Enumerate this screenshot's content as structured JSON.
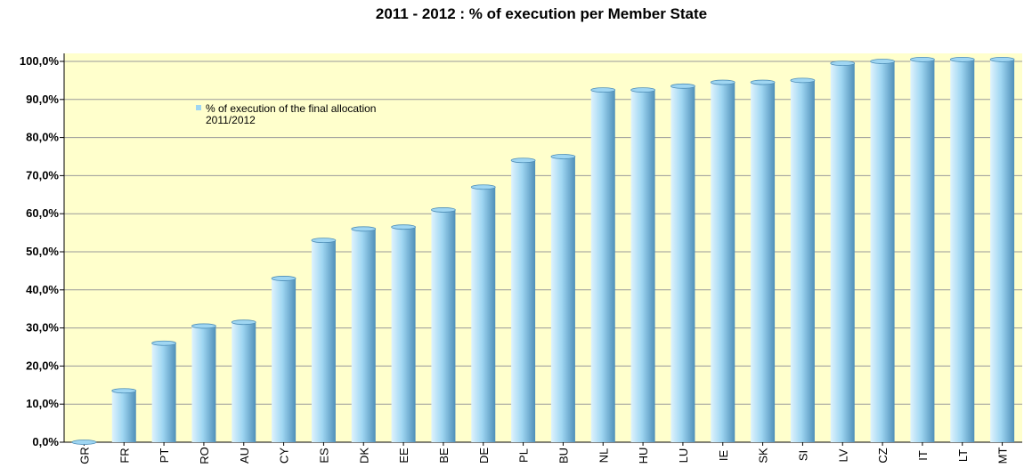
{
  "chart_data": {
    "type": "bar",
    "title": "2011 - 2012 : % of execution per Member State",
    "xlabel": "",
    "ylabel": "",
    "ylim": [
      0,
      100
    ],
    "y_ticks": [
      "0,0%",
      "10,0%",
      "20,0%",
      "30,0%",
      "40,0%",
      "50,0%",
      "60,0%",
      "70,0%",
      "80,0%",
      "90,0%",
      "100,0%"
    ],
    "grid": true,
    "legend_position": "top-left",
    "categories": [
      "GR",
      "FR",
      "PT",
      "RO",
      "AU",
      "CY",
      "ES",
      "DK",
      "EE",
      "BE",
      "DE",
      "PL",
      "BU",
      "NL",
      "HU",
      "LU",
      "IE",
      "SK",
      "SI",
      "LV",
      "CZ",
      "IT",
      "LT",
      "MT"
    ],
    "series": [
      {
        "name": "% of execution of the final allocation 2011/2012",
        "legend_lines": [
          "% of execution of the final allocation",
          "2011/2012"
        ],
        "values": [
          0,
          13.5,
          26,
          30.5,
          31.5,
          43,
          53,
          56,
          56.5,
          61,
          67,
          74,
          75,
          92.5,
          92.5,
          93.5,
          94.5,
          94.5,
          95,
          99.5,
          100,
          100.5,
          100.5,
          100.5
        ]
      }
    ],
    "colors": {
      "plot_background": "#ffffcc",
      "bar_light": "#dff3fd",
      "bar_mid": "#9fd6f2",
      "bar_dark": "#4f8fb8",
      "gridline": "#9a9a9a"
    }
  }
}
